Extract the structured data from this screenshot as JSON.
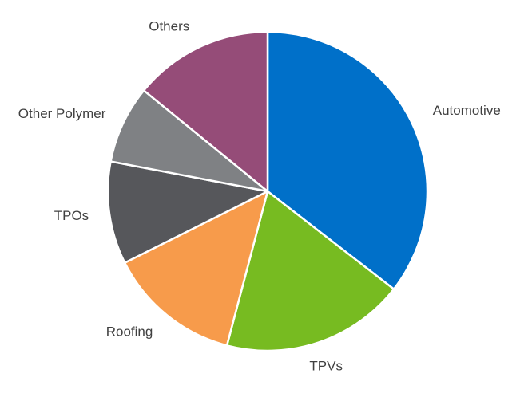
{
  "chart_data": {
    "type": "pie",
    "title": "",
    "start_angle_deg": 0,
    "direction": "clockwise",
    "slices": [
      {
        "label": "Automotive",
        "value": 35.5,
        "color": "#0070C9"
      },
      {
        "label": "TPVs",
        "value": 18.6,
        "color": "#77BB21"
      },
      {
        "label": "Roofing",
        "value": 13.5,
        "color": "#F79B4B"
      },
      {
        "label": "TPOs",
        "value": 10.4,
        "color": "#56575B"
      },
      {
        "label": "Other Polymer",
        "value": 7.9,
        "color": "#7F8184"
      },
      {
        "label": "Others",
        "value": 14.1,
        "color": "#954C78"
      }
    ]
  }
}
